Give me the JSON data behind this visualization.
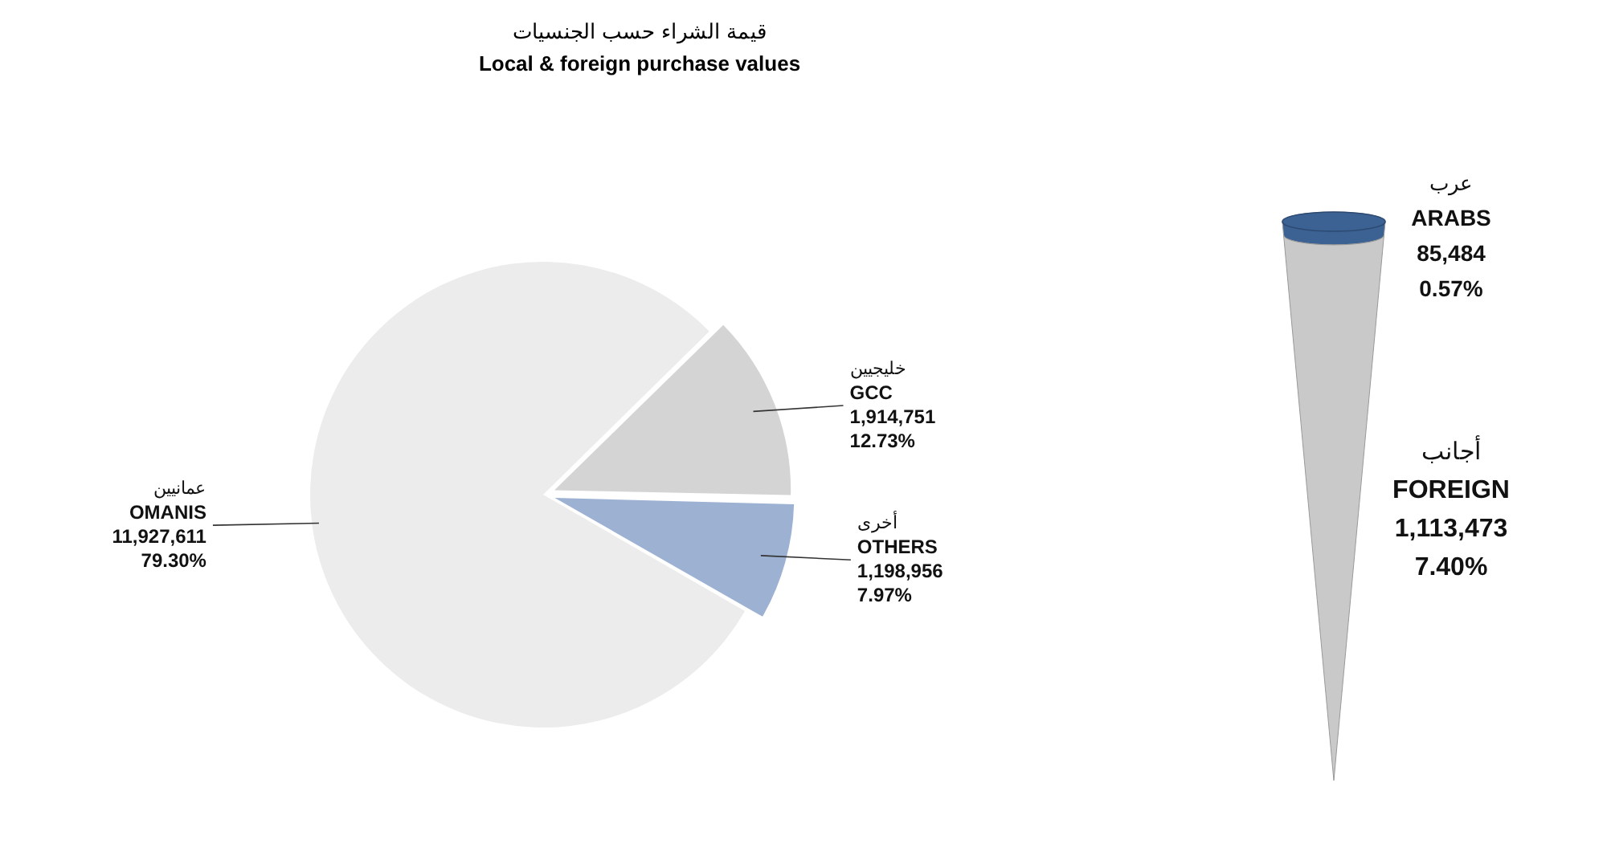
{
  "chart_data": [
    {
      "type": "pie",
      "title": "قيمة الشراء حسب الجنسيات",
      "subtitle": "Local & foreign purchase values",
      "categories": [
        "عمانيين\nOMANIS",
        "خليجيين\nGCC",
        "أخرى\nOTHERS"
      ],
      "values": [
        11927611,
        1914751,
        1198956
      ],
      "value_labels": [
        "11,927,611\n79.30%",
        "1,914,751\n12.73%",
        "1,198,956\n7.97%"
      ],
      "colors": [
        "#ececec",
        "#d4d4d4",
        "#9db2d3"
      ]
    },
    {
      "type": "other",
      "categories": [
        "عرب\nARABS",
        "أجانب\nFOREIGN"
      ],
      "values": [
        85484,
        1113473
      ],
      "value_labels": [
        "85,484\n0.57%",
        "1,113,473\n7.40%"
      ],
      "colors": [
        "#3c6294",
        "#c9c9c9"
      ]
    }
  ]
}
